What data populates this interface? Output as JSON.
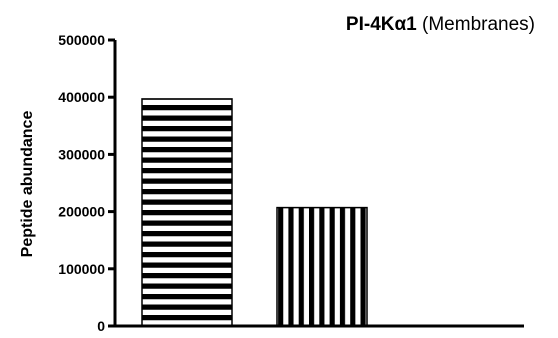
{
  "chart_data": {
    "type": "bar",
    "title_bold": "PI-4Kα1",
    "title_rest": " (Membranes)",
    "xlabel": "",
    "ylabel": "Peptide abundance",
    "ylim": [
      0,
      500000
    ],
    "yticks": [
      "0",
      "100000",
      "200000",
      "300000",
      "400000",
      "500000"
    ],
    "bars": [
      {
        "value": 397000,
        "pattern": "horizontal-stripes"
      },
      {
        "value": 207000,
        "pattern": "vertical-stripes"
      },
      {
        "value": 0,
        "pattern": "none"
      }
    ],
    "grid": false
  }
}
